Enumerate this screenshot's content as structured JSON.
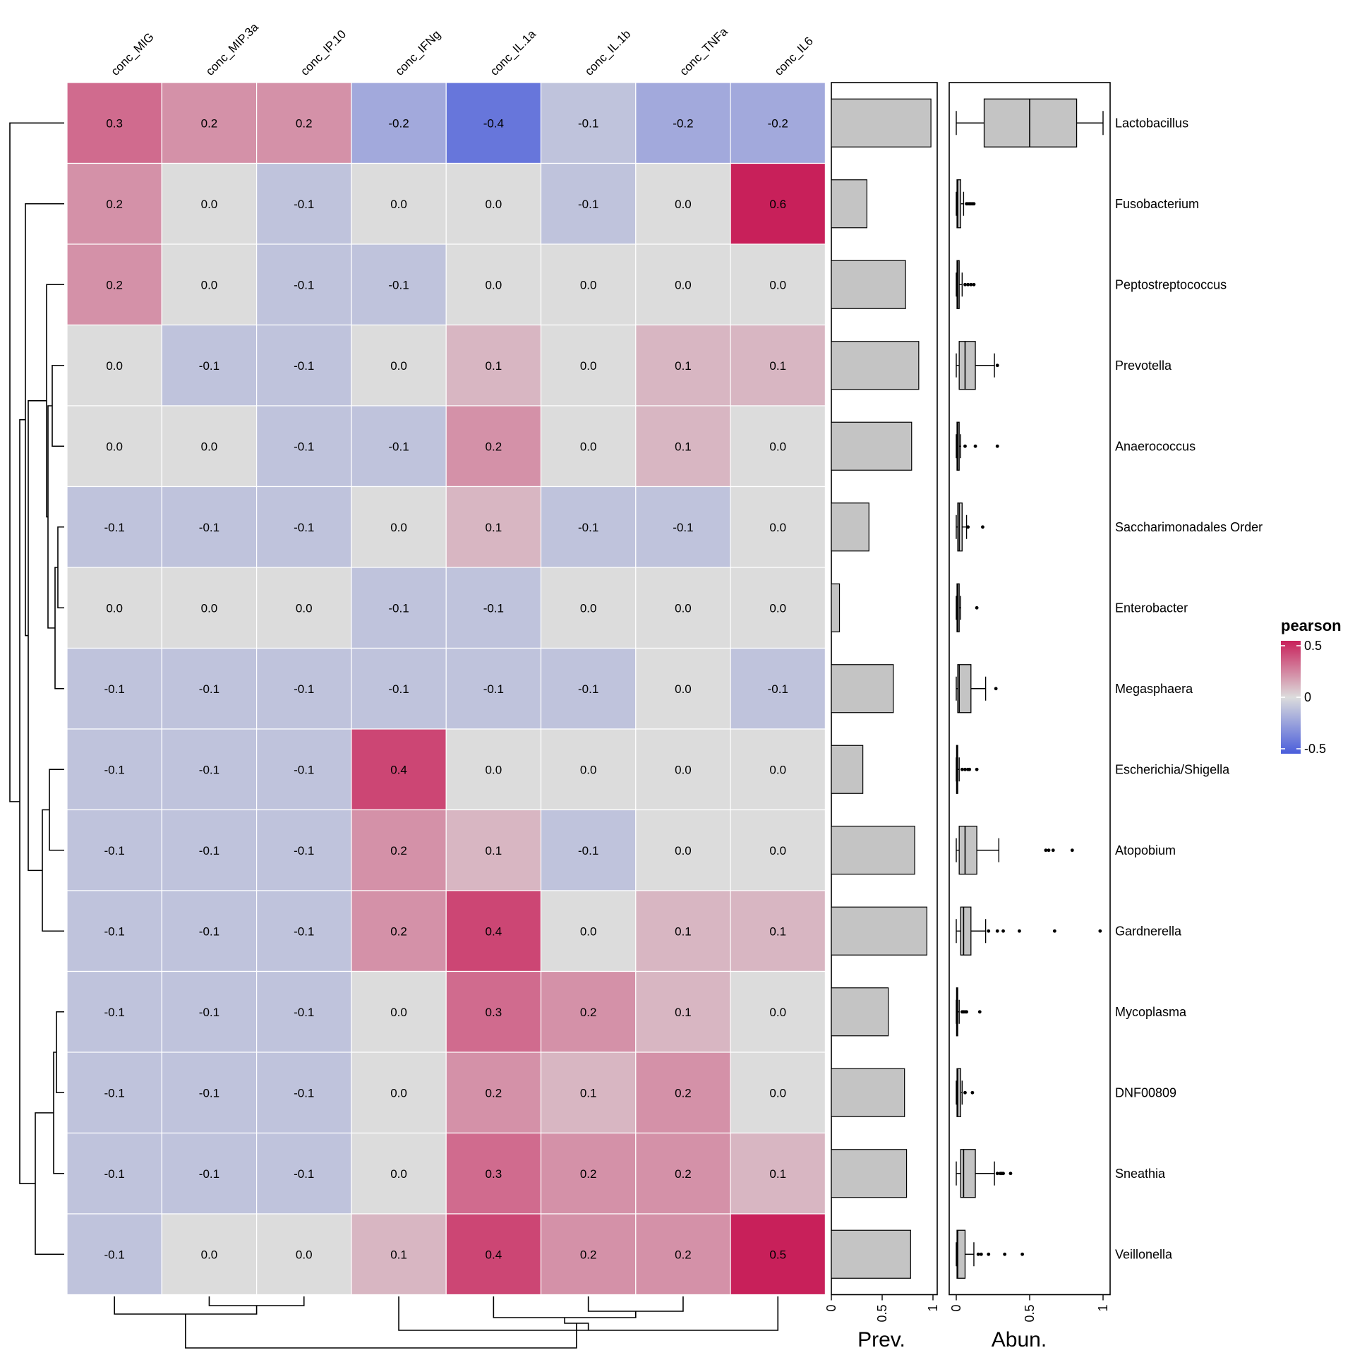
{
  "chart_data": {
    "type": "heatmap",
    "columns": [
      "conc_MIG",
      "conc_MIP.3a",
      "conc_IP.10",
      "conc_IFNg",
      "conc_IL.1a",
      "conc_IL.1b",
      "conc_TNFa",
      "conc_IL6"
    ],
    "rows": [
      "Lactobacillus",
      "Fusobacterium",
      "Peptostreptococcus",
      "Prevotella",
      "Anaerococcus",
      "Saccharimonadales Order",
      "Enterobacter",
      "Megasphaera",
      "Escherichia/Shigella",
      "Atopobium",
      "Gardnerella",
      "Mycoplasma",
      "DNF00809",
      "Sneathia",
      "Veillonella"
    ],
    "values": [
      [
        0.3,
        0.2,
        0.2,
        -0.2,
        -0.4,
        -0.1,
        -0.2,
        -0.2
      ],
      [
        0.2,
        -0.0,
        -0.1,
        -0.0,
        -0.0,
        -0.1,
        0.0,
        0.6
      ],
      [
        0.2,
        -0.0,
        -0.1,
        -0.1,
        0.0,
        -0.0,
        -0.0,
        0.0
      ],
      [
        -0.0,
        -0.1,
        -0.1,
        -0.0,
        0.1,
        0.0,
        0.1,
        0.1
      ],
      [
        -0.0,
        0.0,
        -0.1,
        -0.1,
        0.2,
        0.0,
        0.1,
        0.0
      ],
      [
        -0.1,
        -0.1,
        -0.1,
        -0.0,
        0.1,
        -0.1,
        -0.1,
        -0.0
      ],
      [
        -0.0,
        -0.0,
        0.0,
        -0.1,
        -0.1,
        -0.0,
        -0.0,
        -0.0
      ],
      [
        -0.1,
        -0.1,
        -0.1,
        -0.1,
        -0.1,
        -0.1,
        0.0,
        -0.1
      ],
      [
        -0.1,
        -0.1,
        -0.1,
        0.4,
        -0.0,
        -0.0,
        -0.0,
        -0.0
      ],
      [
        -0.1,
        -0.1,
        -0.1,
        0.2,
        0.1,
        -0.1,
        0.0,
        -0.0
      ],
      [
        -0.1,
        -0.1,
        -0.1,
        0.2,
        0.4,
        0.0,
        0.1,
        0.1
      ],
      [
        -0.1,
        -0.1,
        -0.1,
        0.0,
        0.3,
        0.2,
        0.1,
        0.0
      ],
      [
        -0.1,
        -0.1,
        -0.1,
        -0.0,
        0.2,
        0.1,
        0.2,
        0.0
      ],
      [
        -0.1,
        -0.1,
        -0.1,
        -0.0,
        0.3,
        0.2,
        0.2,
        0.1
      ],
      [
        -0.1,
        -0.0,
        0.0,
        0.1,
        0.4,
        0.2,
        0.2,
        0.5
      ]
    ],
    "colors": {
      "negative": "#4a5ddb",
      "neutral": "#dcdcdc",
      "positive": "#c8205a"
    },
    "legend": {
      "title": "pearson",
      "ticks": [
        "0.5",
        "0",
        "-0.5"
      ],
      "range": [
        -0.5,
        0.5
      ]
    },
    "prevalence": {
      "label": "Prev.",
      "ticks": [
        "0",
        "0.5",
        "1"
      ],
      "range": [
        0,
        1
      ],
      "values": [
        0.98,
        0.35,
        0.73,
        0.86,
        0.79,
        0.37,
        0.08,
        0.61,
        0.31,
        0.82,
        0.94,
        0.56,
        0.72,
        0.74,
        0.78
      ]
    },
    "abundance": {
      "label": "Abun.",
      "ticks": [
        "0",
        "0.5",
        "1"
      ],
      "range": [
        0,
        1
      ],
      "boxes": [
        {
          "min": 0.0,
          "q1": 0.19,
          "median": 0.5,
          "q3": 0.82,
          "max": 1.0,
          "outliers": []
        },
        {
          "min": 0.0,
          "q1": 0.005,
          "median": 0.01,
          "q3": 0.03,
          "max": 0.05,
          "outliers": [
            0.07,
            0.08,
            0.09,
            0.1,
            0.11,
            0.12
          ]
        },
        {
          "min": 0.0,
          "q1": 0.005,
          "median": 0.01,
          "q3": 0.02,
          "max": 0.04,
          "outliers": [
            0.06,
            0.08,
            0.1,
            0.12
          ]
        },
        {
          "min": 0.0,
          "q1": 0.02,
          "median": 0.06,
          "q3": 0.13,
          "max": 0.26,
          "outliers": [
            0.28
          ]
        },
        {
          "min": 0.0,
          "q1": 0.005,
          "median": 0.01,
          "q3": 0.02,
          "max": 0.03,
          "outliers": [
            0.06,
            0.13,
            0.28
          ]
        },
        {
          "min": 0.0,
          "q1": 0.01,
          "median": 0.02,
          "q3": 0.04,
          "max": 0.07,
          "outliers": [
            0.08,
            0.18
          ]
        },
        {
          "min": 0.0,
          "q1": 0.005,
          "median": 0.01,
          "q3": 0.02,
          "max": 0.03,
          "outliers": [
            0.14
          ]
        },
        {
          "min": 0.0,
          "q1": 0.01,
          "median": 0.02,
          "q3": 0.1,
          "max": 0.2,
          "outliers": [
            0.27
          ]
        },
        {
          "min": 0.0,
          "q1": 0.002,
          "median": 0.005,
          "q3": 0.01,
          "max": 0.02,
          "outliers": [
            0.04,
            0.06,
            0.08,
            0.09,
            0.14
          ]
        },
        {
          "min": 0.0,
          "q1": 0.02,
          "median": 0.06,
          "q3": 0.14,
          "max": 0.29,
          "outliers": [
            0.61,
            0.63,
            0.66,
            0.79
          ]
        },
        {
          "min": 0.0,
          "q1": 0.03,
          "median": 0.05,
          "q3": 0.1,
          "max": 0.2,
          "outliers": [
            0.22,
            0.28,
            0.32,
            0.43,
            0.67,
            0.98
          ]
        },
        {
          "min": 0.0,
          "q1": 0.002,
          "median": 0.005,
          "q3": 0.01,
          "max": 0.02,
          "outliers": [
            0.04,
            0.05,
            0.06,
            0.07,
            0.16
          ]
        },
        {
          "min": 0.0,
          "q1": 0.005,
          "median": 0.01,
          "q3": 0.03,
          "max": 0.04,
          "outliers": [
            0.06,
            0.11
          ]
        },
        {
          "min": 0.0,
          "q1": 0.03,
          "median": 0.05,
          "q3": 0.13,
          "max": 0.26,
          "outliers": [
            0.28,
            0.3,
            0.31,
            0.32,
            0.37
          ]
        },
        {
          "min": 0.0,
          "q1": 0.005,
          "median": 0.01,
          "q3": 0.06,
          "max": 0.12,
          "outliers": [
            0.15,
            0.17,
            0.22,
            0.33,
            0.45
          ]
        }
      ]
    }
  }
}
